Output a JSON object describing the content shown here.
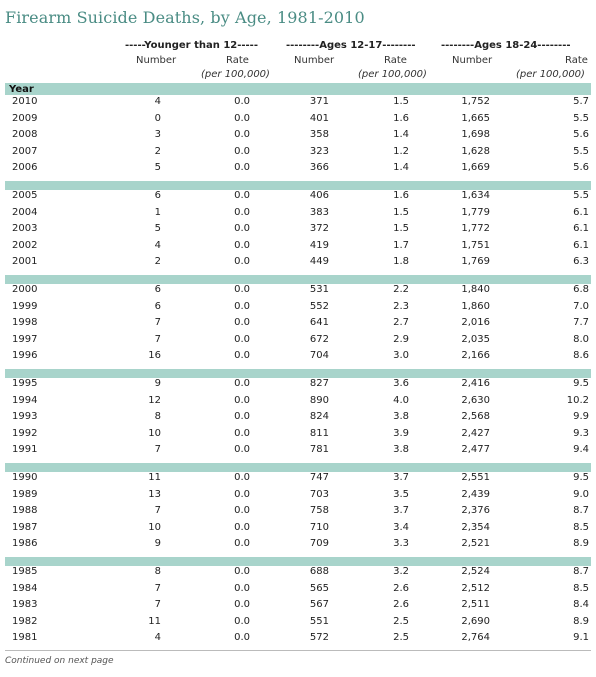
{
  "title": "Firearm Suicide Deaths, by Age, 1981-2010",
  "group_headers": [
    "-----Younger than 12-----",
    "--------Ages 12-17--------",
    "--------Ages 18-24--------"
  ],
  "col_number": "Number",
  "col_rate": "Rate",
  "col_rate_sub": "(per 100,000)",
  "year_label": "Year",
  "footnote": "Continued on next page",
  "chart_data": {
    "type": "table",
    "title": "Firearm Suicide Deaths, by Age, 1981-2010",
    "columns": [
      "Year",
      "Younger than 12 Number",
      "Younger than 12 Rate (per 100,000)",
      "Ages 12-17 Number",
      "Ages 12-17 Rate (per 100,000)",
      "Ages 18-24 Number",
      "Ages 18-24 Rate (per 100,000)"
    ],
    "groups": [
      [
        [
          "2010",
          "4",
          "0.0",
          "371",
          "1.5",
          "1,752",
          "5.7"
        ],
        [
          "2009",
          "0",
          "0.0",
          "401",
          "1.6",
          "1,665",
          "5.5"
        ],
        [
          "2008",
          "3",
          "0.0",
          "358",
          "1.4",
          "1,698",
          "5.6"
        ],
        [
          "2007",
          "2",
          "0.0",
          "323",
          "1.2",
          "1,628",
          "5.5"
        ],
        [
          "2006",
          "5",
          "0.0",
          "366",
          "1.4",
          "1,669",
          "5.6"
        ]
      ],
      [
        [
          "2005",
          "6",
          "0.0",
          "406",
          "1.6",
          "1,634",
          "5.5"
        ],
        [
          "2004",
          "1",
          "0.0",
          "383",
          "1.5",
          "1,779",
          "6.1"
        ],
        [
          "2003",
          "5",
          "0.0",
          "372",
          "1.5",
          "1,772",
          "6.1"
        ],
        [
          "2002",
          "4",
          "0.0",
          "419",
          "1.7",
          "1,751",
          "6.1"
        ],
        [
          "2001",
          "2",
          "0.0",
          "449",
          "1.8",
          "1,769",
          "6.3"
        ]
      ],
      [
        [
          "2000",
          "6",
          "0.0",
          "531",
          "2.2",
          "1,840",
          "6.8"
        ],
        [
          "1999",
          "6",
          "0.0",
          "552",
          "2.3",
          "1,860",
          "7.0"
        ],
        [
          "1998",
          "7",
          "0.0",
          "641",
          "2.7",
          "2,016",
          "7.7"
        ],
        [
          "1997",
          "7",
          "0.0",
          "672",
          "2.9",
          "2,035",
          "8.0"
        ],
        [
          "1996",
          "16",
          "0.0",
          "704",
          "3.0",
          "2,166",
          "8.6"
        ]
      ],
      [
        [
          "1995",
          "9",
          "0.0",
          "827",
          "3.6",
          "2,416",
          "9.5"
        ],
        [
          "1994",
          "12",
          "0.0",
          "890",
          "4.0",
          "2,630",
          "10.2"
        ],
        [
          "1993",
          "8",
          "0.0",
          "824",
          "3.8",
          "2,568",
          "9.9"
        ],
        [
          "1992",
          "10",
          "0.0",
          "811",
          "3.9",
          "2,427",
          "9.3"
        ],
        [
          "1991",
          "7",
          "0.0",
          "781",
          "3.8",
          "2,477",
          "9.4"
        ]
      ],
      [
        [
          "1990",
          "11",
          "0.0",
          "747",
          "3.7",
          "2,551",
          "9.5"
        ],
        [
          "1989",
          "13",
          "0.0",
          "703",
          "3.5",
          "2,439",
          "9.0"
        ],
        [
          "1988",
          "7",
          "0.0",
          "758",
          "3.7",
          "2,376",
          "8.7"
        ],
        [
          "1987",
          "10",
          "0.0",
          "710",
          "3.4",
          "2,354",
          "8.5"
        ],
        [
          "1986",
          "9",
          "0.0",
          "709",
          "3.3",
          "2,521",
          "8.9"
        ]
      ],
      [
        [
          "1985",
          "8",
          "0.0",
          "688",
          "3.2",
          "2,524",
          "8.7"
        ],
        [
          "1984",
          "7",
          "0.0",
          "565",
          "2.6",
          "2,512",
          "8.5"
        ],
        [
          "1983",
          "7",
          "0.0",
          "567",
          "2.6",
          "2,511",
          "8.4"
        ],
        [
          "1982",
          "11",
          "0.0",
          "551",
          "2.5",
          "2,690",
          "8.9"
        ],
        [
          "1981",
          "4",
          "0.0",
          "572",
          "2.5",
          "2,764",
          "9.1"
        ]
      ]
    ]
  }
}
